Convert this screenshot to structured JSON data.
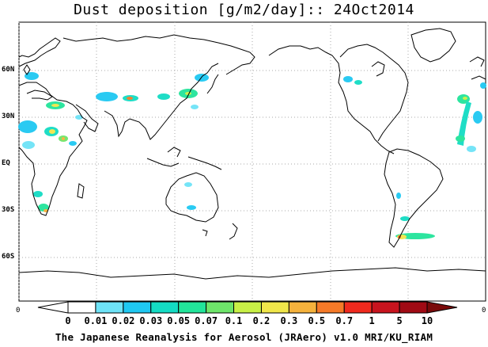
{
  "title": "Dust deposition [g/m2/day]:: 24Oct2014",
  "lat_labels": [
    "60N",
    "30N",
    "EQ",
    "30S",
    "60S"
  ],
  "edge_labels": {
    "left": "0",
    "right": "0"
  },
  "colorbar": {
    "labels": [
      "0",
      "0.01",
      "0.02",
      "0.03",
      "0.05",
      "0.07",
      "0.1",
      "0.2",
      "0.3",
      "0.5",
      "0.7",
      "1",
      "5",
      "10"
    ],
    "colors": [
      "#ffffff",
      "#ffffff",
      "#6ee3f7",
      "#1fc8f2",
      "#14dcc4",
      "#22e49a",
      "#6ee56a",
      "#c8f046",
      "#f0e64a",
      "#f5b23c",
      "#f57a28",
      "#f02a1e",
      "#c8141e",
      "#a00a14",
      "#7a0a0a"
    ]
  },
  "footer": "The Japanese Reanalysis for Aerosol (JRAero) v1.0 MRI/KU_RIAM",
  "colors": {
    "coast": "#000000",
    "grid": "#aaaaaa",
    "frame": "#000000"
  }
}
